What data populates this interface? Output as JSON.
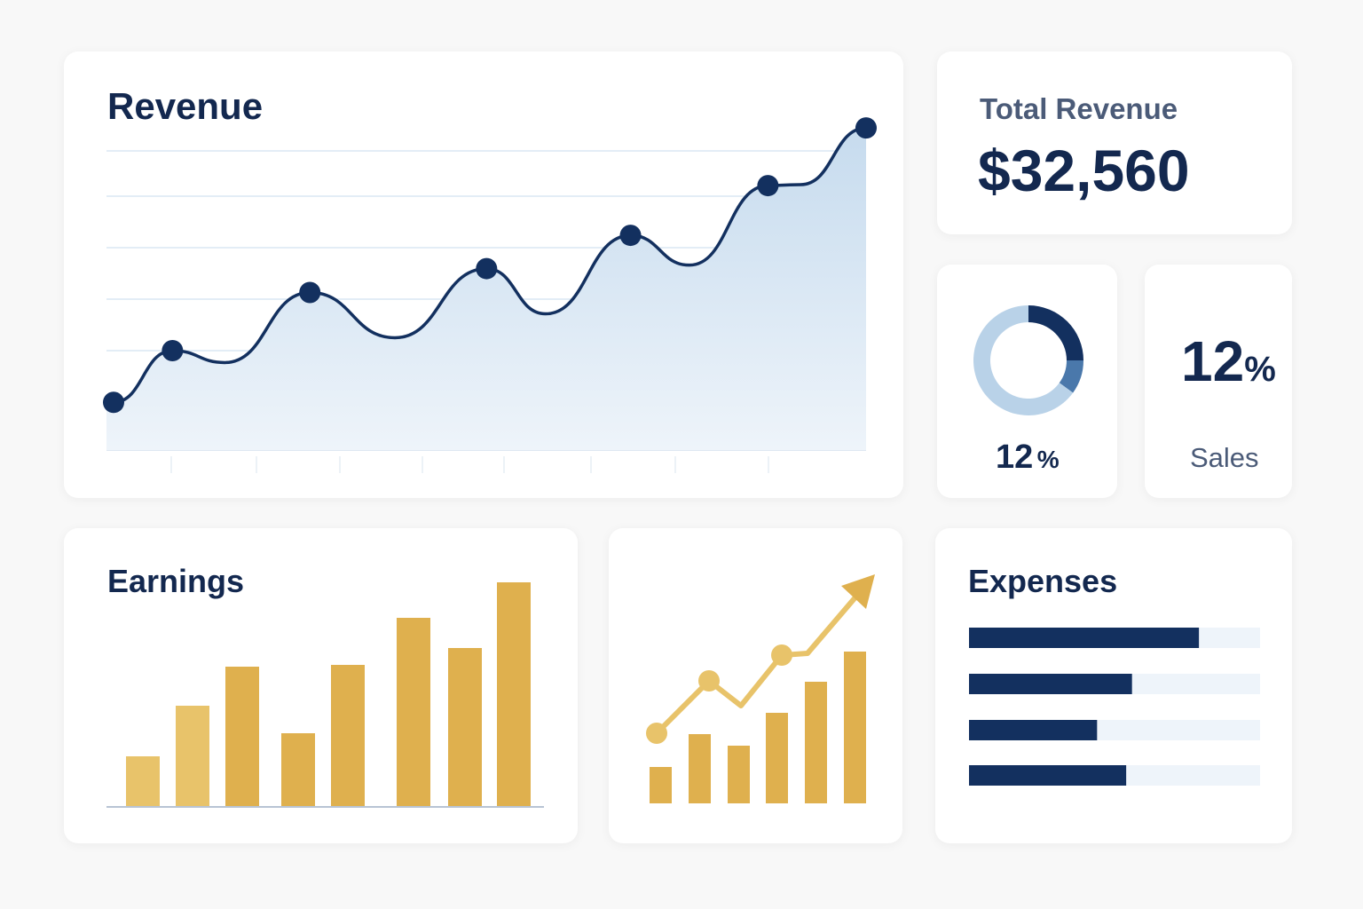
{
  "revenue": {
    "title": "Revenue"
  },
  "total_revenue": {
    "label": "Total Revenue",
    "value": "$32,560"
  },
  "donut_card": {
    "value": "12",
    "unit": "%"
  },
  "sales_card": {
    "value": "12",
    "unit": "%",
    "label": "Sales"
  },
  "earnings": {
    "title": "Earnings"
  },
  "expenses": {
    "title": "Expenses"
  },
  "colors": {
    "navy": "#13305f",
    "fill": "#cfe0f0",
    "gold": "#dfb04e",
    "gold_light": "#e8c36a",
    "track": "#eef4fa",
    "donut_light": "#b9d2e8",
    "donut_mid": "#4a78ab"
  },
  "chart_data": [
    {
      "type": "area",
      "title": "Revenue",
      "ylim": [
        0,
        6.5
      ],
      "grid": true,
      "points": [
        {
          "x": 0,
          "y": 0.96,
          "marker": true
        },
        {
          "x": 0.9,
          "y": 2.0,
          "marker": true
        },
        {
          "x": 1.7,
          "y": 1.76,
          "marker": false
        },
        {
          "x": 3.0,
          "y": 3.17,
          "marker": true
        },
        {
          "x": 4.3,
          "y": 2.26,
          "marker": false
        },
        {
          "x": 5.7,
          "y": 3.65,
          "marker": true
        },
        {
          "x": 6.6,
          "y": 2.74,
          "marker": false
        },
        {
          "x": 7.9,
          "y": 4.32,
          "marker": true
        },
        {
          "x": 8.8,
          "y": 3.72,
          "marker": false
        },
        {
          "x": 10.0,
          "y": 5.32,
          "marker": true
        },
        {
          "x": 10.5,
          "y": 5.34,
          "marker": false
        },
        {
          "x": 11.5,
          "y": 6.48,
          "marker": true
        }
      ],
      "xlim": [
        -0.1,
        11.5
      ]
    },
    {
      "type": "bar",
      "title": "Earnings",
      "values": [
        57,
        114,
        158,
        83,
        160,
        213,
        179,
        253
      ],
      "ylim": [
        0,
        260
      ]
    },
    {
      "type": "bar+line",
      "bar_values": [
        41,
        78,
        65,
        102,
        137,
        171
      ],
      "line_values": [
        79,
        138,
        110,
        167,
        169,
        245
      ],
      "ylim": [
        0,
        260
      ]
    },
    {
      "type": "bar",
      "orientation": "horizontal",
      "title": "Expenses",
      "values": [
        0.79,
        0.56,
        0.44,
        0.54
      ],
      "xlim": [
        0,
        1
      ]
    },
    {
      "type": "pie",
      "donut": true,
      "values": [
        25,
        10,
        65
      ]
    }
  ]
}
